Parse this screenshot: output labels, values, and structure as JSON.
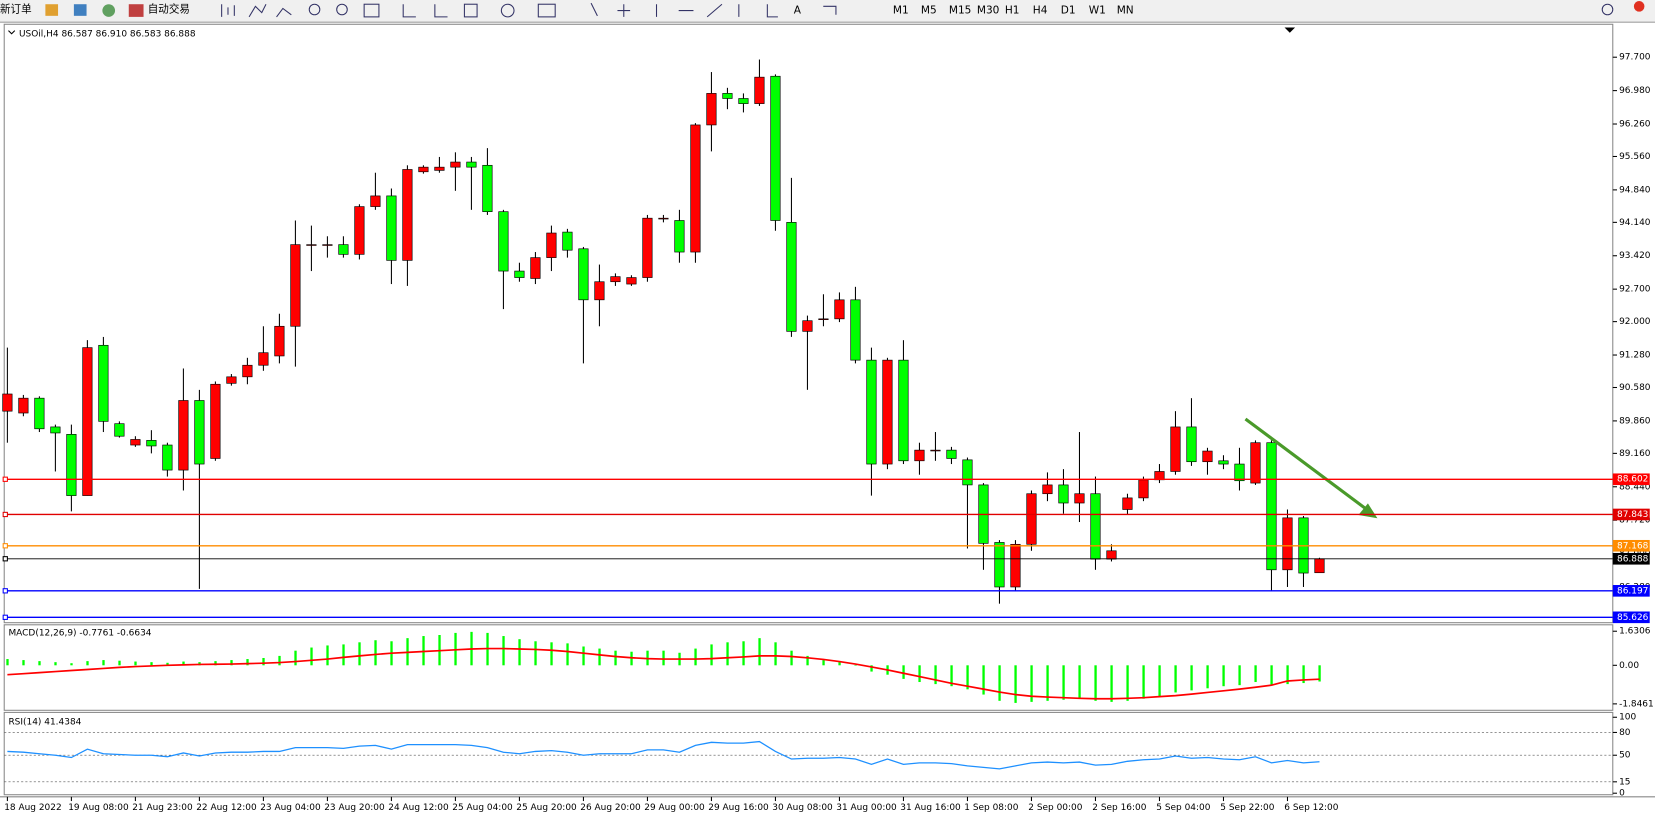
{
  "toolbar": {
    "buttons": [
      "新订单",
      "自动交易"
    ],
    "timeframes": [
      "M1",
      "M5",
      "M15",
      "M30",
      "H1",
      "H4",
      "D1",
      "W1",
      "MN"
    ]
  },
  "chart_data": [
    {
      "type": "candlestick",
      "title": "USOil,H4 86.587 86.910 86.583 86.888",
      "categories": [
        "18 Aug 2022",
        null,
        null,
        null,
        "19 Aug 08:00",
        null,
        null,
        null,
        "21 Aug 23:00",
        null,
        null,
        null,
        "22 Aug 12:00",
        null,
        null,
        null,
        "23 Aug 04:00",
        null,
        null,
        null,
        "23 Aug 20:00",
        null,
        null,
        null,
        "24 Aug 12:00",
        null,
        null,
        null,
        "25 Aug 04:00",
        null,
        null,
        null,
        "25 Aug 20:00",
        null,
        null,
        null,
        "26 Aug 20:00",
        null,
        null,
        null,
        "29 Aug 00:00",
        null,
        null,
        null,
        "29 Aug 16:00",
        null,
        null,
        null,
        "30 Aug 08:00",
        null,
        null,
        null,
        "31 Aug 00:00",
        null,
        null,
        null,
        "31 Aug 16:00",
        null,
        null,
        null,
        "1 Sep 08:00",
        null,
        null,
        null,
        "2 Sep 00:00",
        null,
        null,
        null,
        "2 Sep 16:00",
        null,
        null,
        null,
        "5 Sep 04:00",
        null,
        null,
        null,
        "5 Sep 22:00",
        null,
        null,
        null,
        "6 Sep 12:00",
        null,
        null
      ],
      "open": [
        90.07,
        90.03,
        90.35,
        89.73,
        89.57,
        88.25,
        91.49,
        89.8,
        89.34,
        89.44,
        89.34,
        88.8,
        90.3,
        89.05,
        90.67,
        90.81,
        91.06,
        91.26,
        91.9,
        93.66,
        93.66,
        93.66,
        93.45,
        94.48,
        94.71,
        93.32,
        95.23,
        95.26,
        95.33,
        95.44,
        95.37,
        94.37,
        93.09,
        92.93,
        93.38,
        93.93,
        93.57,
        92.47,
        92.86,
        92.81,
        92.95,
        94.23,
        94.18,
        93.5,
        96.24,
        96.92,
        96.81,
        96.7,
        97.29,
        94.14,
        91.79,
        92.06,
        92.06,
        92.47,
        91.17,
        88.93,
        91.17,
        89.0,
        89.23,
        89.23,
        89.02,
        88.48,
        87.24,
        86.28,
        87.2,
        88.29,
        88.48,
        88.09,
        88.29,
        86.88,
        87.95,
        88.2,
        88.59,
        88.77,
        89.73,
        88.98,
        89.0,
        88.93,
        88.52,
        89.39,
        86.65,
        87.77,
        86.587
      ],
      "high": [
        91.44,
        90.42,
        90.39,
        89.78,
        89.78,
        91.6,
        91.67,
        89.85,
        89.53,
        89.66,
        89.39,
        90.99,
        90.53,
        90.71,
        90.87,
        91.22,
        91.9,
        92.17,
        94.18,
        94.07,
        93.84,
        93.84,
        94.53,
        95.21,
        94.87,
        95.37,
        95.37,
        95.55,
        95.65,
        95.55,
        95.74,
        94.41,
        93.27,
        93.5,
        94.07,
        94.0,
        93.61,
        93.23,
        93.04,
        93.0,
        94.3,
        94.3,
        94.41,
        96.28,
        97.38,
        97.04,
        96.92,
        97.65,
        97.33,
        95.1,
        92.13,
        92.59,
        92.63,
        92.75,
        91.44,
        91.22,
        91.6,
        89.39,
        89.62,
        89.3,
        89.07,
        88.52,
        87.29,
        87.29,
        88.36,
        88.75,
        88.82,
        89.62,
        88.66,
        87.2,
        88.29,
        88.66,
        88.93,
        90.07,
        90.35,
        89.28,
        89.12,
        89.28,
        89.44,
        89.44,
        87.95,
        87.81,
        86.91
      ],
      "low": [
        89.39,
        89.96,
        89.62,
        88.77,
        87.91,
        88.25,
        89.62,
        89.5,
        89.3,
        89.16,
        88.66,
        88.36,
        86.24,
        89.0,
        90.62,
        90.65,
        90.94,
        91.1,
        91.03,
        93.09,
        93.38,
        93.38,
        93.34,
        94.41,
        92.81,
        92.77,
        95.19,
        95.21,
        94.82,
        94.41,
        94.3,
        92.27,
        92.86,
        92.81,
        93.09,
        93.38,
        91.1,
        91.9,
        92.77,
        92.77,
        92.86,
        94.14,
        93.27,
        93.27,
        95.67,
        96.58,
        96.51,
        96.65,
        93.96,
        91.67,
        90.53,
        91.9,
        91.99,
        91.1,
        88.25,
        88.82,
        88.93,
        88.7,
        89.0,
        88.93,
        87.11,
        86.65,
        85.92,
        86.19,
        87.06,
        88.13,
        87.86,
        87.68,
        86.65,
        86.83,
        87.84,
        88.13,
        88.52,
        88.7,
        88.89,
        88.7,
        88.82,
        88.36,
        88.48,
        86.19,
        86.28,
        86.28,
        86.583
      ],
      "close": [
        90.44,
        90.35,
        89.69,
        89.6,
        88.25,
        91.44,
        89.85,
        89.53,
        89.46,
        89.32,
        88.8,
        90.3,
        88.93,
        90.65,
        90.81,
        91.06,
        91.33,
        91.9,
        93.66,
        93.66,
        93.66,
        93.45,
        94.48,
        94.71,
        93.32,
        95.28,
        95.33,
        95.33,
        95.44,
        95.33,
        94.37,
        93.09,
        92.95,
        93.38,
        93.91,
        93.54,
        92.47,
        92.86,
        92.97,
        92.95,
        94.23,
        94.23,
        93.5,
        96.24,
        96.92,
        96.81,
        96.7,
        97.27,
        94.18,
        91.79,
        92.02,
        92.06,
        92.47,
        91.17,
        88.93,
        91.17,
        89.0,
        89.23,
        89.23,
        89.05,
        88.48,
        87.22,
        86.28,
        87.2,
        88.29,
        88.48,
        88.09,
        88.29,
        86.88,
        87.06,
        88.2,
        88.59,
        88.77,
        89.73,
        88.98,
        89.21,
        88.93,
        88.57,
        89.39,
        86.65,
        87.77,
        86.58,
        86.888
      ],
      "up_color": "#ff0000",
      "down_color": "#00ff00",
      "ylim": [
        85.51,
        98.41
      ],
      "yticks": [
        {
          "value": 97.7,
          "label": "97.700"
        },
        {
          "value": 96.98,
          "label": "96.980"
        },
        {
          "value": 96.26,
          "label": "96.260"
        },
        {
          "value": 95.56,
          "label": "95.560"
        },
        {
          "value": 94.84,
          "label": "94.840"
        },
        {
          "value": 94.14,
          "label": "94.140"
        },
        {
          "value": 93.42,
          "label": "93.420"
        },
        {
          "value": 92.7,
          "label": "92.700"
        },
        {
          "value": 92.0,
          "label": "92.000"
        },
        {
          "value": 91.28,
          "label": "91.280"
        },
        {
          "value": 90.58,
          "label": "90.580"
        },
        {
          "value": 89.86,
          "label": "89.860"
        },
        {
          "value": 89.16,
          "label": "89.160"
        },
        {
          "value": 88.44,
          "label": "88.440"
        },
        {
          "value": 87.72,
          "label": "87.720"
        },
        {
          "value": 87.0,
          "label": "87.000"
        },
        {
          "value": 86.28,
          "label": "86.280"
        }
      ],
      "levels": [
        {
          "value": 88.602,
          "color": "#ff0000"
        },
        {
          "value": 87.843,
          "color": "#e00000"
        },
        {
          "value": 87.168,
          "color": "#ff8c00"
        },
        {
          "value": 86.888,
          "color": "#000000"
        },
        {
          "value": 86.197,
          "color": "#0000ff"
        },
        {
          "value": 85.626,
          "color": "#0000ff"
        }
      ]
    },
    {
      "type": "macd",
      "title": "MACD(12,26,9) -0.7761 -0.6634",
      "histogram": {
        "color": "#00ff00",
        "values": [
          0.3,
          0.25,
          0.2,
          0.15,
          0.1,
          0.2,
          0.25,
          0.22,
          0.18,
          0.15,
          0.12,
          0.18,
          0.15,
          0.2,
          0.25,
          0.3,
          0.35,
          0.45,
          0.7,
          0.85,
          0.95,
          1.0,
          1.1,
          1.2,
          1.15,
          1.3,
          1.4,
          1.45,
          1.55,
          1.6,
          1.55,
          1.4,
          1.25,
          1.15,
          1.1,
          1.05,
          0.9,
          0.8,
          0.7,
          0.65,
          0.7,
          0.7,
          0.6,
          0.8,
          1.0,
          1.1,
          1.15,
          1.3,
          1.1,
          0.7,
          0.45,
          0.25,
          0.15,
          0.0,
          -0.3,
          -0.45,
          -0.65,
          -0.8,
          -0.9,
          -1.0,
          -1.15,
          -1.4,
          -1.7,
          -1.8,
          -1.75,
          -1.7,
          -1.65,
          -1.6,
          -1.7,
          -1.75,
          -1.7,
          -1.6,
          -1.5,
          -1.3,
          -1.2,
          -1.1,
          -1.0,
          -0.95,
          -0.8,
          -0.95,
          -0.9,
          -0.85,
          -0.7761
        ]
      },
      "signal": {
        "color": "#ff0000",
        "values": [
          -0.45,
          -0.4,
          -0.35,
          -0.3,
          -0.25,
          -0.2,
          -0.15,
          -0.1,
          -0.06,
          -0.03,
          0.0,
          0.02,
          0.04,
          0.05,
          0.06,
          0.08,
          0.1,
          0.13,
          0.18,
          0.24,
          0.3,
          0.38,
          0.45,
          0.52,
          0.58,
          0.62,
          0.66,
          0.7,
          0.74,
          0.78,
          0.8,
          0.8,
          0.78,
          0.76,
          0.72,
          0.66,
          0.58,
          0.5,
          0.42,
          0.36,
          0.32,
          0.3,
          0.3,
          0.3,
          0.32,
          0.36,
          0.4,
          0.45,
          0.45,
          0.42,
          0.36,
          0.28,
          0.18,
          0.06,
          -0.08,
          -0.22,
          -0.38,
          -0.54,
          -0.7,
          -0.86,
          -1.0,
          -1.14,
          -1.28,
          -1.4,
          -1.48,
          -1.52,
          -1.55,
          -1.58,
          -1.6,
          -1.6,
          -1.58,
          -1.55,
          -1.5,
          -1.45,
          -1.38,
          -1.3,
          -1.22,
          -1.14,
          -1.05,
          -0.95,
          -0.75,
          -0.7,
          -0.6634
        ]
      },
      "ylim": [
        -2.153,
        1.938
      ],
      "yticks": [
        1.6306,
        {
          "value": 0,
          "label": "0.00"
        },
        -1.8461
      ]
    },
    {
      "type": "line",
      "title": "RSI(14) 41.4384",
      "color": "#1e90ff",
      "values": [
        55,
        54,
        52,
        50,
        47,
        58,
        52,
        51,
        50,
        50,
        48,
        53,
        49,
        53,
        54,
        54,
        55,
        55,
        60,
        60,
        60,
        59,
        62,
        63,
        58,
        64,
        64,
        64,
        64,
        63,
        60,
        54,
        52,
        55,
        56,
        54,
        50,
        52,
        52,
        52,
        57,
        57,
        54,
        63,
        67,
        66,
        66,
        68,
        55,
        45,
        46,
        46,
        47,
        45,
        38,
        45,
        38,
        40,
        40,
        39,
        36,
        34,
        32,
        36,
        40,
        41,
        40,
        41,
        37,
        38,
        42,
        44,
        45,
        49,
        46,
        47,
        45,
        44,
        48,
        40,
        43,
        40,
        41.4384
      ],
      "ylim": [
        -2,
        105
      ],
      "yticks": [
        100,
        80,
        50,
        15,
        0
      ],
      "levels": [
        80,
        50,
        15
      ]
    }
  ]
}
